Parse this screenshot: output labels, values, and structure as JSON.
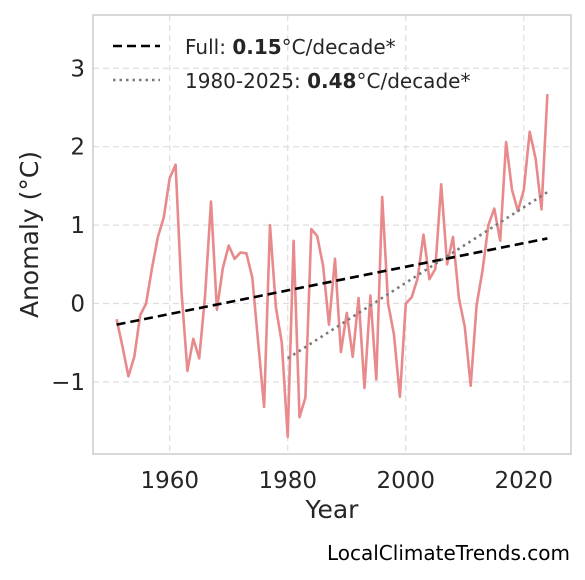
{
  "chart_data": {
    "type": "line",
    "title": "",
    "xlabel": "Year",
    "ylabel": "Anomaly (°C)",
    "xlim": [
      1947,
      2028
    ],
    "ylim": [
      -1.92,
      3.68
    ],
    "x_ticks": [
      1960,
      1980,
      2000,
      2020
    ],
    "y_ticks": [
      -1,
      0,
      1,
      2,
      3
    ],
    "x_tick_labels": [
      "1960",
      "1980",
      "2000",
      "2020"
    ],
    "y_tick_labels": [
      "−1",
      "0",
      "1",
      "2",
      "3"
    ],
    "grid": true,
    "legend_position": "top-left",
    "colors": {
      "series": "#e88a8c",
      "full_trend": "#000000",
      "recent_trend": "#7a7a7a",
      "grid": "#dddddd",
      "frame": "#cccccc"
    },
    "series": [
      {
        "x": [
          1951,
          1952,
          1953,
          1954,
          1955,
          1956,
          1957,
          1958,
          1959,
          1960,
          1961,
          1962,
          1963,
          1964,
          1965,
          1966,
          1967,
          1968,
          1969,
          1970,
          1971,
          1972,
          1973,
          1974,
          1975,
          1976,
          1977,
          1978,
          1979,
          1980,
          1981,
          1982,
          1983,
          1984,
          1985,
          1986,
          1987,
          1988,
          1989,
          1990,
          1991,
          1992,
          1993,
          1994,
          1995,
          1996,
          1997,
          1998,
          1999,
          2000,
          2001,
          2002,
          2003,
          2004,
          2005,
          2006,
          2007,
          2008,
          2009,
          2010,
          2011,
          2012,
          2013,
          2014,
          2015,
          2016,
          2017,
          2018,
          2019,
          2020,
          2021,
          2022,
          2023,
          2024
        ],
        "y": [
          -0.2,
          -0.55,
          -0.93,
          -0.68,
          -0.15,
          0.0,
          0.45,
          0.85,
          1.1,
          1.6,
          1.77,
          0.15,
          -0.86,
          -0.45,
          -0.7,
          0.1,
          1.3,
          -0.08,
          0.45,
          0.74,
          0.57,
          0.65,
          0.64,
          0.33,
          -0.5,
          -1.32,
          1.0,
          -0.05,
          -0.5,
          -1.7,
          0.8,
          -1.45,
          -1.2,
          0.95,
          0.86,
          0.48,
          -0.27,
          0.57,
          -0.62,
          -0.12,
          -0.68,
          0.07,
          -1.08,
          0.1,
          -0.97,
          1.36,
          0.0,
          -0.4,
          -1.19,
          0.0,
          0.08,
          0.32,
          0.88,
          0.31,
          0.44,
          1.52,
          0.5,
          0.85,
          0.07,
          -0.3,
          -1.05,
          -0.02,
          0.42,
          1.0,
          1.21,
          0.8,
          2.06,
          1.45,
          1.18,
          1.45,
          2.19,
          1.85,
          1.2,
          2.67
        ]
      },
      {
        "name": "Full",
        "rate": "0.15",
        "unit": "°C/decade*",
        "x": [
          1951,
          2024
        ],
        "y": [
          -0.27,
          0.83
        ]
      },
      {
        "name": "1980-2025",
        "rate": "0.48",
        "unit": "°C/decade*",
        "x": [
          1980,
          2024
        ],
        "y": [
          -0.7,
          1.42
        ]
      }
    ]
  },
  "credit": "LocalClimateTrends.com"
}
